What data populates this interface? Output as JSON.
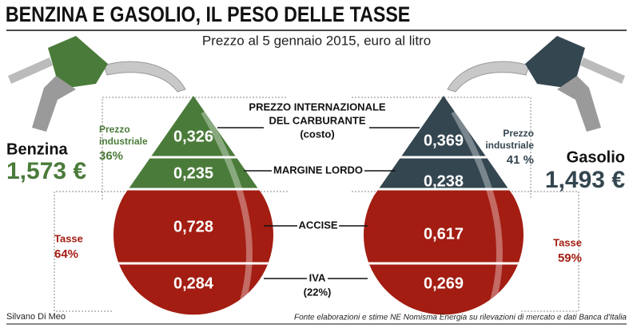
{
  "header": {
    "title": "BENZINA E GASOLIO, IL PESO DELLE TASSE",
    "subtitle": "Prezzo al 5 gennaio 2015, euro al litro"
  },
  "center_labels": {
    "prezzo": [
      "PREZZO INTERNAZIONALE",
      "DEL CARBURANTE",
      "(costo)"
    ],
    "margine": "MARGINE LORDO",
    "accise": "ACCISE",
    "iva": [
      "IVA",
      "(22%)"
    ]
  },
  "benzina": {
    "name": "Benzina",
    "price": "1,573 €",
    "industrial_label": [
      "Prezzo",
      "industriale"
    ],
    "industrial_pct": "36%",
    "tax_label": "Tasse",
    "tax_pct": "64%",
    "values": {
      "prezzo": "0,326",
      "margine": "0,235",
      "accise": "0,728",
      "iva": "0,284"
    }
  },
  "gasolio": {
    "name": "Gasolio",
    "price": "1,493 €",
    "industrial_label": [
      "Prezzo",
      "industriale"
    ],
    "industrial_pct": "41 %",
    "tax_label": "Tasse",
    "tax_pct": "59%",
    "values": {
      "prezzo": "0,369",
      "margine": "0,238",
      "accise": "0,617",
      "iva": "0,269"
    }
  },
  "footer": {
    "author": "Silvano Di Meo",
    "source": "Fonte elaborazioni e stime NE Nomisma Energia su rilevazioni di mercato e dati Banca d'Italia"
  }
}
